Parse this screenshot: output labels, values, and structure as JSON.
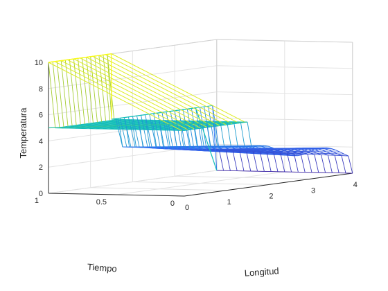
{
  "chart_data": {
    "type": "mesh",
    "title": "",
    "xlabel": "Longitud",
    "ylabel": "Tiempo",
    "zlabel": "Temperatura",
    "xlim": [
      0,
      4
    ],
    "ylim": [
      0,
      1
    ],
    "zlim": [
      0,
      10
    ],
    "x_ticks": [
      "0",
      "1",
      "2",
      "3",
      "4"
    ],
    "y_ticks": [
      "0",
      "0.5",
      "1"
    ],
    "z_ticks": [
      "0",
      "2",
      "4",
      "6",
      "8",
      "10"
    ],
    "grid": true,
    "colormap": "parula",
    "step_location_x": 1.5,
    "initial_profile": {
      "x": [
        0,
        0.5,
        1.0,
        1.49,
        1.5,
        2.0,
        2.5,
        3.0,
        3.5,
        4.0
      ],
      "z": [
        10,
        10,
        10,
        10,
        5,
        5,
        5,
        5,
        5,
        0
      ]
    },
    "late_profile": {
      "x": [
        0,
        1.0,
        1.5,
        2.0,
        2.5,
        3.0,
        3.5,
        4.0
      ],
      "z": [
        5,
        5,
        5,
        5,
        5,
        5,
        5,
        0
      ]
    }
  },
  "colors": {
    "axis_text": "#262626",
    "grid": "#e3e3e3",
    "box": "#d0d0d0",
    "background": "#ffffff",
    "colormap_low": "#3e26a8",
    "colormap_mid": "#13beb8",
    "colormap_high": "#f9fb15"
  }
}
